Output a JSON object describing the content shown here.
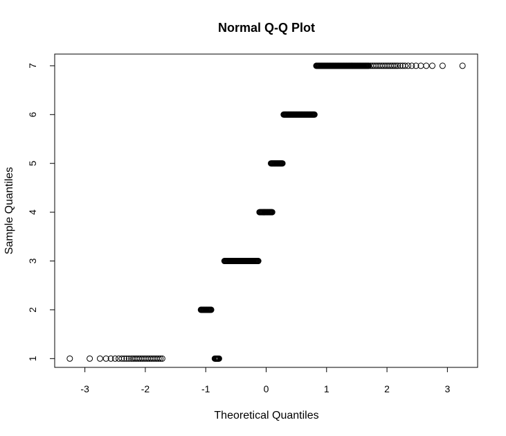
{
  "chart_data": {
    "type": "scatter",
    "title": "Normal Q-Q Plot",
    "xlabel": "Theoretical Quantiles",
    "ylabel": "Sample Quantiles",
    "xlim": [
      -3.5,
      3.5
    ],
    "ylim": [
      0.82,
      7.24
    ],
    "xticks": [
      -3,
      -2,
      -1,
      0,
      1,
      2,
      3
    ],
    "yticks": [
      1,
      2,
      3,
      4,
      5,
      6,
      7
    ],
    "grid": false,
    "marker": "open-circle",
    "groups": [
      {
        "y": 1,
        "x_min": -0.85,
        "x_max": -0.78,
        "outliers": [
          -3.25,
          -2.92,
          -2.75,
          -2.65,
          -2.57,
          -2.5,
          -2.44,
          -2.39,
          -2.35,
          -2.31,
          -2.27,
          -2.23,
          -2.2,
          -2.17,
          -2.14,
          -2.11,
          -2.08,
          -2.05,
          -2.02,
          -1.99,
          -1.96,
          -1.93,
          -1.9,
          -1.87,
          -1.84,
          -1.81,
          -1.78,
          -1.75,
          -1.72
        ]
      },
      {
        "y": 2,
        "x_min": -1.08,
        "x_max": -0.91,
        "outliers": []
      },
      {
        "y": 3,
        "x_min": -0.69,
        "x_max": -0.13,
        "outliers": []
      },
      {
        "y": 4,
        "x_min": -0.11,
        "x_max": 0.1,
        "outliers": []
      },
      {
        "y": 5,
        "x_min": 0.08,
        "x_max": 0.27,
        "outliers": []
      },
      {
        "y": 6,
        "x_min": 0.29,
        "x_max": 0.8,
        "outliers": []
      },
      {
        "y": 7,
        "x_min": 0.83,
        "x_max": 1.7,
        "outliers": [
          1.73,
          1.76,
          1.79,
          1.82,
          1.85,
          1.88,
          1.91,
          1.94,
          1.97,
          2.0,
          2.03,
          2.06,
          2.09,
          2.12,
          2.15,
          2.18,
          2.22,
          2.26,
          2.3,
          2.35,
          2.41,
          2.48,
          2.56,
          2.65,
          2.75,
          2.92,
          3.25
        ]
      }
    ]
  }
}
